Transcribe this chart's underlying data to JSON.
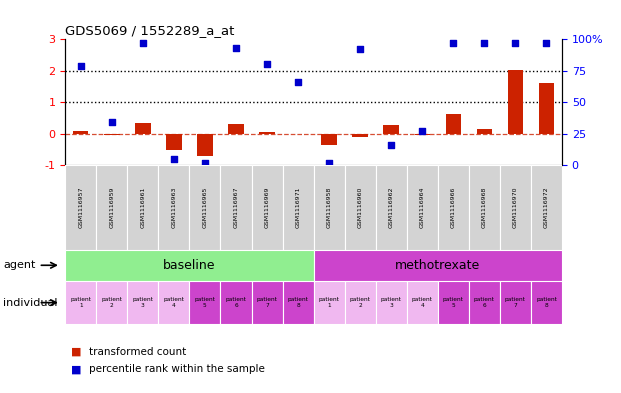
{
  "title": "GDS5069 / 1552289_a_at",
  "gsm_labels": [
    "GSM1116957",
    "GSM1116959",
    "GSM1116961",
    "GSM1116963",
    "GSM1116965",
    "GSM1116967",
    "GSM1116969",
    "GSM1116971",
    "GSM1116958",
    "GSM1116960",
    "GSM1116962",
    "GSM1116964",
    "GSM1116966",
    "GSM1116968",
    "GSM1116970",
    "GSM1116972"
  ],
  "transformed_count": [
    0.07,
    -0.04,
    0.33,
    -0.52,
    -0.72,
    0.3,
    0.06,
    -0.02,
    -0.36,
    -0.1,
    0.26,
    -0.04,
    0.62,
    0.14,
    2.02,
    1.6
  ],
  "percentile_rank_right": [
    79,
    34,
    97,
    5,
    2,
    93,
    80,
    66,
    2,
    92,
    16,
    27,
    97,
    97,
    97,
    97
  ],
  "bar_color": "#cc2200",
  "dot_color": "#0000cc",
  "ylim_left": [
    -1,
    3
  ],
  "ylim_right": [
    0,
    100
  ],
  "yticks_left": [
    -1,
    0,
    1,
    2,
    3
  ],
  "yticks_right": [
    0,
    25,
    50,
    75,
    100
  ],
  "dotted_lines": [
    2.0,
    1.0
  ],
  "dashed_line_y": 0.0,
  "agent_groups": [
    {
      "label": "baseline",
      "start": 0,
      "end": 8,
      "color": "#90ee90"
    },
    {
      "label": "methotrexate",
      "start": 8,
      "end": 16,
      "color": "#cc44cc"
    }
  ],
  "individual_colors": [
    "#f0b8f0",
    "#f0b8f0",
    "#f0b8f0",
    "#f0b8f0",
    "#cc44cc",
    "#cc44cc",
    "#cc44cc",
    "#cc44cc",
    "#f0b8f0",
    "#f0b8f0",
    "#f0b8f0",
    "#f0b8f0",
    "#cc44cc",
    "#cc44cc",
    "#cc44cc",
    "#cc44cc"
  ],
  "individual_labels": [
    "patient\n1",
    "patient\n2",
    "patient\n3",
    "patient\n4",
    "patient\n5",
    "patient\n6",
    "patient\n7",
    "patient\n8",
    "patient\n1",
    "patient\n2",
    "patient\n3",
    "patient\n4",
    "patient\n5",
    "patient\n6",
    "patient\n7",
    "patient\n8"
  ],
  "legend_items": [
    {
      "label": "transformed count",
      "color": "#cc2200"
    },
    {
      "label": "percentile rank within the sample",
      "color": "#0000cc"
    }
  ],
  "agent_label": "agent",
  "individual_label": "individual",
  "bar_width": 0.5,
  "dot_size": 18,
  "gsm_bg_color": "#d3d3d3",
  "gsm_text_fontsize": 4.5,
  "agent_fontsize": 9,
  "individual_fontsize": 4.2
}
